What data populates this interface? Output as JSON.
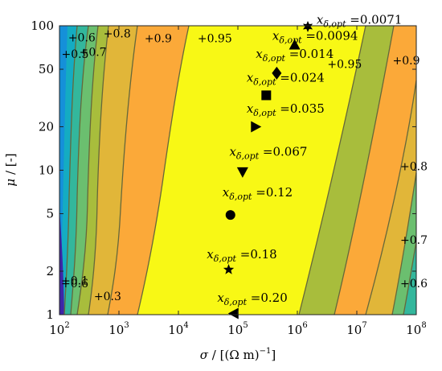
{
  "chart_data": {
    "type": "contour",
    "x_axis": {
      "label_var": "σ",
      "label_rest": " / [(Ω m)",
      "label_exp": "−1",
      "label_close": "]",
      "scale": "log",
      "range": [
        100,
        100000000
      ],
      "ticks": [
        {
          "base": "10",
          "exp": "2",
          "value": 100
        },
        {
          "base": "10",
          "exp": "3",
          "value": 1000
        },
        {
          "base": "10",
          "exp": "4",
          "value": 10000
        },
        {
          "base": "10",
          "exp": "5",
          "value": 100000
        },
        {
          "base": "10",
          "exp": "6",
          "value": 1000000
        },
        {
          "base": "10",
          "exp": "7",
          "value": 10000000
        },
        {
          "base": "10",
          "exp": "8",
          "value": 100000000
        }
      ]
    },
    "y_axis": {
      "label_var": "μ",
      "label_rest": " / [-]",
      "scale": "log",
      "range": [
        1,
        100
      ],
      "ticks": [
        {
          "label": "1",
          "value": 1
        },
        {
          "label": "2",
          "value": 2
        },
        {
          "label": "5",
          "value": 5
        },
        {
          "label": "10",
          "value": 10
        },
        {
          "label": "20",
          "value": 20
        },
        {
          "label": "50",
          "value": 50
        },
        {
          "label": "100",
          "value": 100
        }
      ]
    },
    "contour_levels": [
      "0.1",
      "0.2",
      "0.3",
      "0.4",
      "0.5",
      "0.6",
      "0.7",
      "0.8",
      "0.9",
      "0.95"
    ],
    "colormap": [
      "#3e26a8",
      "#4536c9",
      "#2f6cf2",
      "#1590d9",
      "#14acc2",
      "#33b79c",
      "#6bbf6f",
      "#a8bd3c",
      "#e1b639",
      "#fba939",
      "#f4dc27",
      "#f8f815"
    ],
    "contour_labels": [
      {
        "text": "0.1",
        "x": 106,
        "y": 1.62
      },
      {
        "text": "0.3",
        "x": 380,
        "y": 1.26
      },
      {
        "text": "0.5",
        "x": 108,
        "y": 60
      },
      {
        "text": "0.6",
        "x": 140,
        "y": 78
      },
      {
        "text": "0.7",
        "x": 215,
        "y": 62
      },
      {
        "text": "0.8",
        "x": 550,
        "y": 83
      },
      {
        "text": "0.9",
        "x": 2700,
        "y": 77
      },
      {
        "text": "0.95",
        "x": 21000,
        "y": 77
      },
      {
        "text": "0.95",
        "x": 3200000,
        "y": 51
      },
      {
        "text": "0.9",
        "x": 40000000,
        "y": 54
      },
      {
        "text": "0.8",
        "x": 80000000,
        "y": 10
      },
      {
        "text": "0.7",
        "x": 80000000,
        "y": 3.1
      },
      {
        "text": "0.6",
        "x": 85000000,
        "y": 1.55
      },
      {
        "text": "0.6",
        "x": 100,
        "y": 1.55
      }
    ],
    "optima": [
      {
        "marker": "hexagram",
        "sigma": 1500000,
        "mu": 100,
        "value": "0.0071",
        "label_x": 2100000,
        "label_y": 103
      },
      {
        "marker": "triangle-up",
        "sigma": 900000,
        "mu": 74,
        "value": "0.0094",
        "label_x": 380000,
        "label_y": 80
      },
      {
        "marker": "diamond",
        "sigma": 450000,
        "mu": 47,
        "value": "0.014",
        "label_x": 200000,
        "label_y": 60
      },
      {
        "marker": "square",
        "sigma": 300000,
        "mu": 33,
        "value": "0.024",
        "label_x": 140000,
        "label_y": 41
      },
      {
        "marker": "triangle-right",
        "sigma": 200000,
        "mu": 20,
        "value": "0.035",
        "label_x": 140000,
        "label_y": 25
      },
      {
        "marker": "triangle-down",
        "sigma": 120000,
        "mu": 9.7,
        "value": "0.067",
        "label_x": 72000,
        "label_y": 12.6
      },
      {
        "marker": "circle",
        "sigma": 75000,
        "mu": 4.9,
        "value": "0.12",
        "label_x": 55000,
        "label_y": 6.6
      },
      {
        "marker": "pentagram",
        "sigma": 70000,
        "mu": 2.05,
        "value": "0.18",
        "label_x": 30000,
        "label_y": 2.45
      },
      {
        "marker": "triangle-left",
        "sigma": 85000,
        "mu": 1.02,
        "value": "0.20",
        "label_x": 45000,
        "label_y": 1.23
      }
    ],
    "optimum_label": {
      "var": "x",
      "sub": "δ,opt",
      "eq": " ="
    }
  }
}
